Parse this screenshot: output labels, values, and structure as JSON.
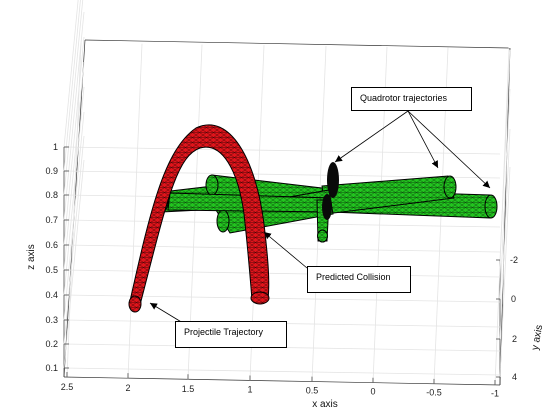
{
  "chart_data": {
    "type": "3d-tube-plot",
    "xlabel": "x axis",
    "ylabel": "y axis",
    "zlabel": "z axis",
    "xticks": [
      "2.5",
      "2",
      "1.5",
      "1",
      "0.5",
      "0",
      "-0.5",
      "-1"
    ],
    "yticks": [
      "-2",
      "0",
      "2",
      "4"
    ],
    "zticks": [
      "0.1",
      "0.2",
      "0.3",
      "0.4",
      "0.5",
      "0.6",
      "0.7",
      "0.8",
      "0.9",
      "1"
    ],
    "xlim": [
      -1,
      2.5
    ],
    "ylim": [
      -2,
      4
    ],
    "zlim": [
      0.1,
      1
    ],
    "grid": true,
    "series": [
      {
        "color": "#e0141b",
        "kind": "projectile"
      },
      {
        "color": "#22c41f",
        "kind": "quadrotor"
      },
      {
        "color": "#0a0a0a",
        "kind": "collision"
      }
    ],
    "annotations": [
      {
        "id": "quadrotor",
        "text": "Quadrotor trajectories"
      },
      {
        "id": "collision",
        "text": "Predicted Collision"
      },
      {
        "id": "projectile",
        "text": "Projectile Trajectory"
      }
    ]
  }
}
